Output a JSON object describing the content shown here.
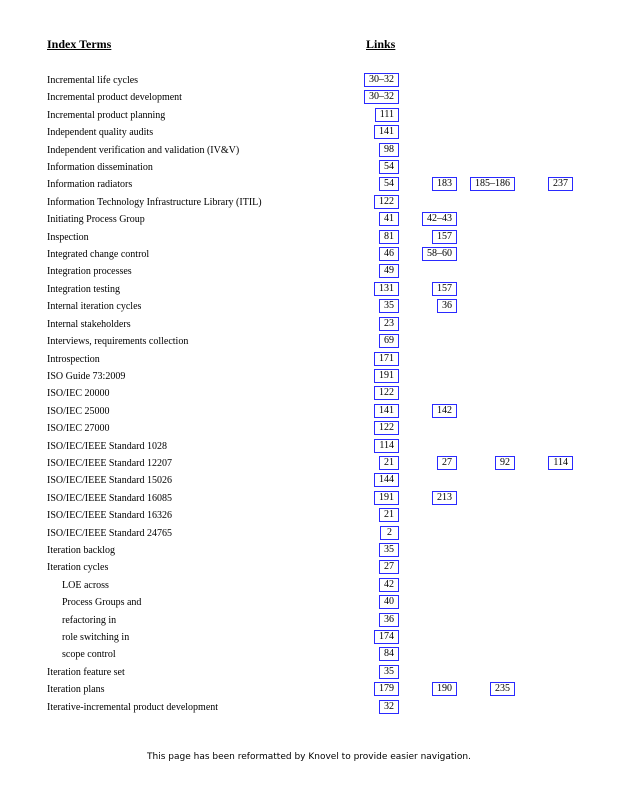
{
  "header": {
    "terms": "Index Terms",
    "links": "Links"
  },
  "rows": [
    {
      "term": "Incremental life cycles",
      "links": [
        "30–32"
      ]
    },
    {
      "term": "Incremental product development",
      "links": [
        "30–32"
      ]
    },
    {
      "term": "Incremental product planning",
      "links": [
        "111"
      ]
    },
    {
      "term": "Independent quality audits",
      "links": [
        "141"
      ]
    },
    {
      "term": "Independent verification and validation (IV&V)",
      "links": [
        "98"
      ]
    },
    {
      "term": "Information dissemination",
      "links": [
        "54"
      ]
    },
    {
      "term": "Information radiators",
      "links": [
        "54",
        "183",
        "185–186",
        "237"
      ]
    },
    {
      "term": "Information Technology Infrastructure Library (ITIL)",
      "links": [
        "122"
      ]
    },
    {
      "term": "Initiating Process Group",
      "links": [
        "41",
        "42–43"
      ]
    },
    {
      "term": "Inspection",
      "links": [
        "81",
        "157"
      ]
    },
    {
      "term": "Integrated change control",
      "links": [
        "46",
        "58–60"
      ]
    },
    {
      "term": "Integration processes",
      "links": [
        "49"
      ]
    },
    {
      "term": "Integration testing",
      "links": [
        "131",
        "157"
      ]
    },
    {
      "term": "Internal iteration cycles",
      "links": [
        "35",
        "36"
      ]
    },
    {
      "term": "Internal stakeholders",
      "links": [
        "23"
      ]
    },
    {
      "term": "Interviews, requirements collection",
      "links": [
        "69"
      ]
    },
    {
      "term": "Introspection",
      "links": [
        "171"
      ]
    },
    {
      "term": "ISO Guide 73:2009",
      "links": [
        "191"
      ]
    },
    {
      "term": "ISO/IEC 20000",
      "links": [
        "122"
      ]
    },
    {
      "term": "ISO/IEC 25000",
      "links": [
        "141",
        "142"
      ]
    },
    {
      "term": "ISO/IEC 27000",
      "links": [
        "122"
      ]
    },
    {
      "term": "ISO/IEC/IEEE Standard 1028",
      "links": [
        "114"
      ]
    },
    {
      "term": "ISO/IEC/IEEE Standard 12207",
      "links": [
        "21",
        "27",
        "92",
        "114"
      ]
    },
    {
      "term": "ISO/IEC/IEEE Standard 15026",
      "links": [
        "144"
      ]
    },
    {
      "term": "ISO/IEC/IEEE Standard 16085",
      "links": [
        "191",
        "213"
      ]
    },
    {
      "term": "ISO/IEC/IEEE Standard 16326",
      "links": [
        "21"
      ]
    },
    {
      "term": "ISO/IEC/IEEE Standard 24765",
      "links": [
        "2"
      ]
    },
    {
      "term": "Iteration backlog",
      "links": [
        "35"
      ]
    },
    {
      "term": "Iteration cycles",
      "links": [
        "27"
      ]
    },
    {
      "term": "LOE across",
      "links": [
        "42"
      ],
      "sub": true
    },
    {
      "term": "Process Groups and",
      "links": [
        "40"
      ],
      "sub": true
    },
    {
      "term": "refactoring in",
      "links": [
        "36"
      ],
      "sub": true
    },
    {
      "term": "role switching in",
      "links": [
        "174"
      ],
      "sub": true
    },
    {
      "term": "scope control",
      "links": [
        "84"
      ],
      "sub": true
    },
    {
      "term": "Iteration feature set",
      "links": [
        "35"
      ]
    },
    {
      "term": "Iteration plans",
      "links": [
        "179",
        "190",
        "235"
      ]
    },
    {
      "term": "Iterative-incremental product development",
      "links": [
        "32"
      ]
    }
  ],
  "footer": "This page has been reformatted by Knovel to provide easier navigation.",
  "colors": {
    "link_border": "#2a2aff"
  }
}
